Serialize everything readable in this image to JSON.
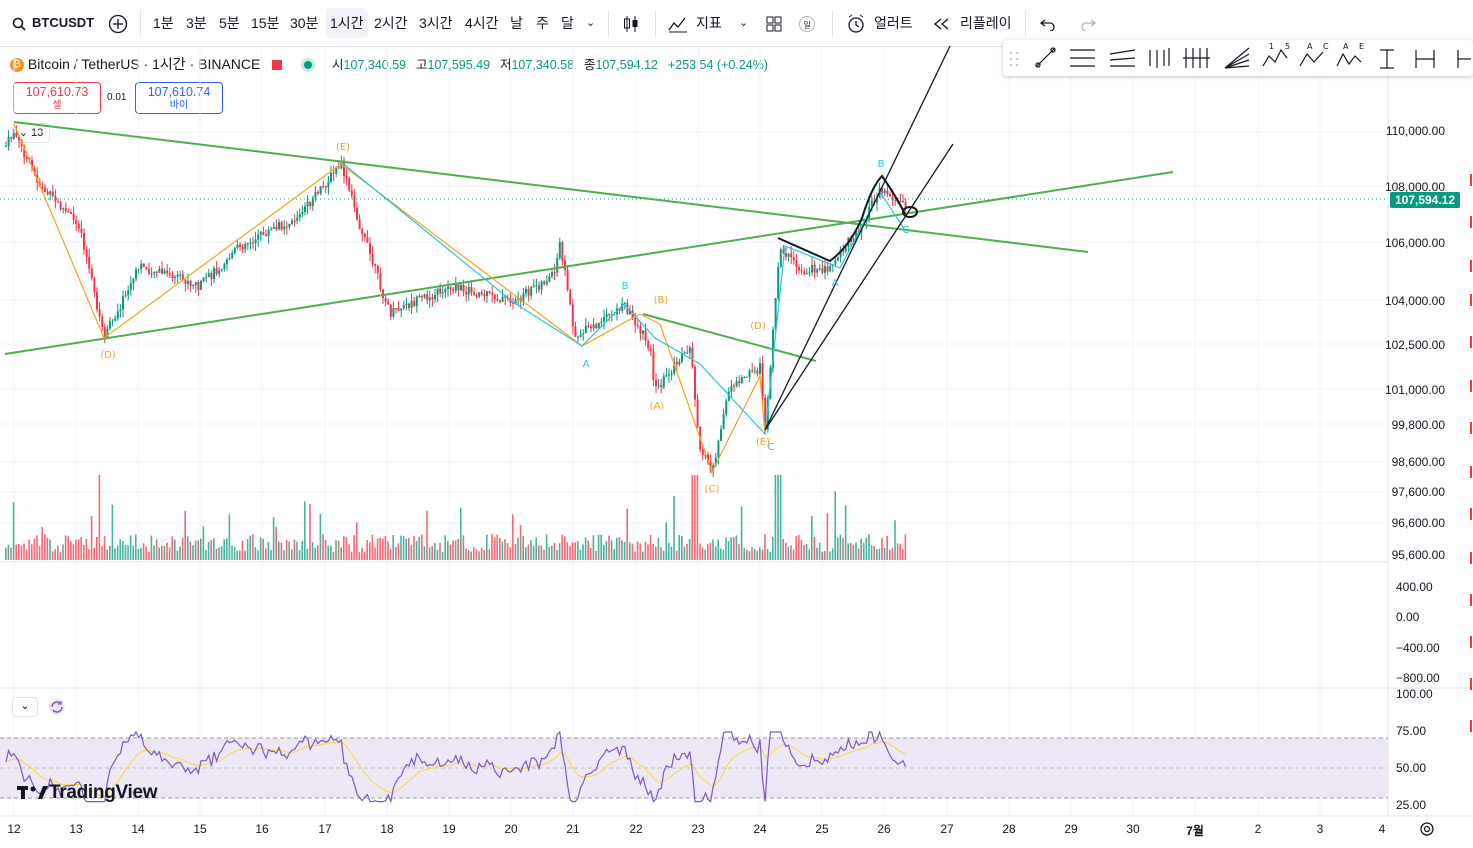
{
  "symbol": "BTCUSDT",
  "toolbar": {
    "intervals": [
      "1분",
      "3분",
      "5분",
      "15분",
      "30분",
      "1시간",
      "2시간",
      "3시간",
      "4시간",
      "날",
      "주",
      "달"
    ],
    "active_interval": "1시간",
    "indicators_label": "지표",
    "alert_label": "얼러트",
    "replay_label": "리플레이"
  },
  "legend": {
    "title": "Bitcoin / TetherUS · 1시간 · BINANCE",
    "open_label": "시",
    "open": "107,340.59",
    "high_label": "고",
    "high": "107,595.49",
    "low_label": "저",
    "low": "107,340.58",
    "close_label": "종",
    "close": "107,594.12",
    "change": "+253.54 (+0.24%)"
  },
  "trade": {
    "sell_price": "107,610.73",
    "sell_label": "셀",
    "spread": "0.01",
    "buy_price": "107,610.74",
    "buy_label": "바이",
    "collapsed_count": "13"
  },
  "price_axis": [
    "110,000.00",
    "108,000.00",
    "106,000.00",
    "104,000.00",
    "102,500.00",
    "101,000.00",
    "99,800.00",
    "98,600.00",
    "97,600.00",
    "96,600.00",
    "95,600.00"
  ],
  "current_price": "107,594.12",
  "macd_axis": [
    "400.00",
    "0.00",
    "−400.00",
    "−800.00"
  ],
  "rsi_axis": [
    "100.00",
    "75.00",
    "50.00",
    "25.00"
  ],
  "time_axis": [
    "12",
    "13",
    "14",
    "15",
    "16",
    "17",
    "18",
    "19",
    "20",
    "21",
    "22",
    "23",
    "24",
    "25",
    "26",
    "27",
    "28",
    "29",
    "30",
    "7월",
    "2",
    "3",
    "4"
  ],
  "wave_labels": {
    "orange": [
      "(E)",
      "(D)",
      "(B)",
      "(A)",
      "(D)",
      "(E)",
      "(C)"
    ],
    "blue": [
      "B",
      "A",
      "B",
      "A",
      "C",
      "C"
    ]
  },
  "brand": "TradingView",
  "colors": {
    "up": "#089981",
    "down": "#f23645",
    "trendline": "#4caf50",
    "orange_wave": "#f7a21b",
    "blue_wave": "#26c6da",
    "rsi": "#7e57c2",
    "rsi_ma": "#fdd835",
    "rsi_band": "#ede7f6"
  }
}
